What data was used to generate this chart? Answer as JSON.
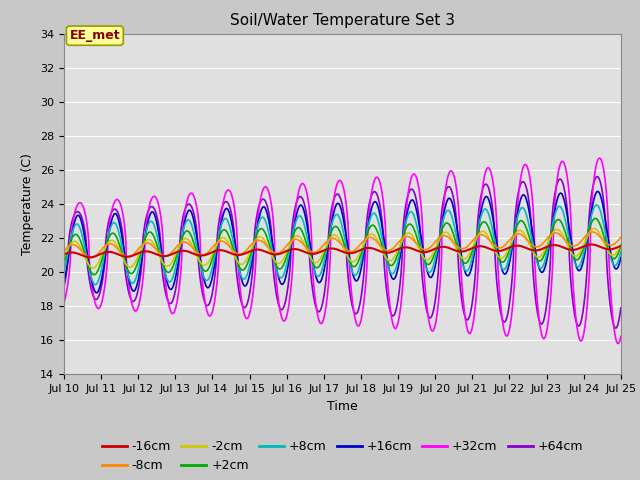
{
  "title": "Soil/Water Temperature Set 3",
  "xlabel": "Time",
  "ylabel": "Temperature (C)",
  "ylim": [
    14,
    34
  ],
  "yticks": [
    14,
    16,
    18,
    20,
    22,
    24,
    26,
    28,
    30,
    32,
    34
  ],
  "xlim": [
    0,
    15
  ],
  "xtick_labels": [
    "Jul 10",
    "Jul 11",
    "Jul 12",
    "Jul 13",
    "Jul 14",
    "Jul 15",
    "Jul 16",
    "Jul 17",
    "Jul 18",
    "Jul 19",
    "Jul 20",
    "Jul 21",
    "Jul 22",
    "Jul 23",
    "Jul 24",
    "Jul 25"
  ],
  "annotation_text": "EE_met",
  "annotation_bg": "#ffff99",
  "annotation_border": "#999900",
  "annotation_text_color": "#880000",
  "bg_color": "#e8e8e8",
  "series_colors": {
    "-16cm": "#cc0000",
    "-8cm": "#ff8800",
    "-2cm": "#cccc00",
    "+2cm": "#00aa00",
    "+8cm": "#00bbbb",
    "+16cm": "#0000cc",
    "+32cm": "#ff00ff",
    "+64cm": "#8800cc"
  },
  "legend_fontsize": 9,
  "title_fontsize": 11,
  "tick_fontsize": 8
}
